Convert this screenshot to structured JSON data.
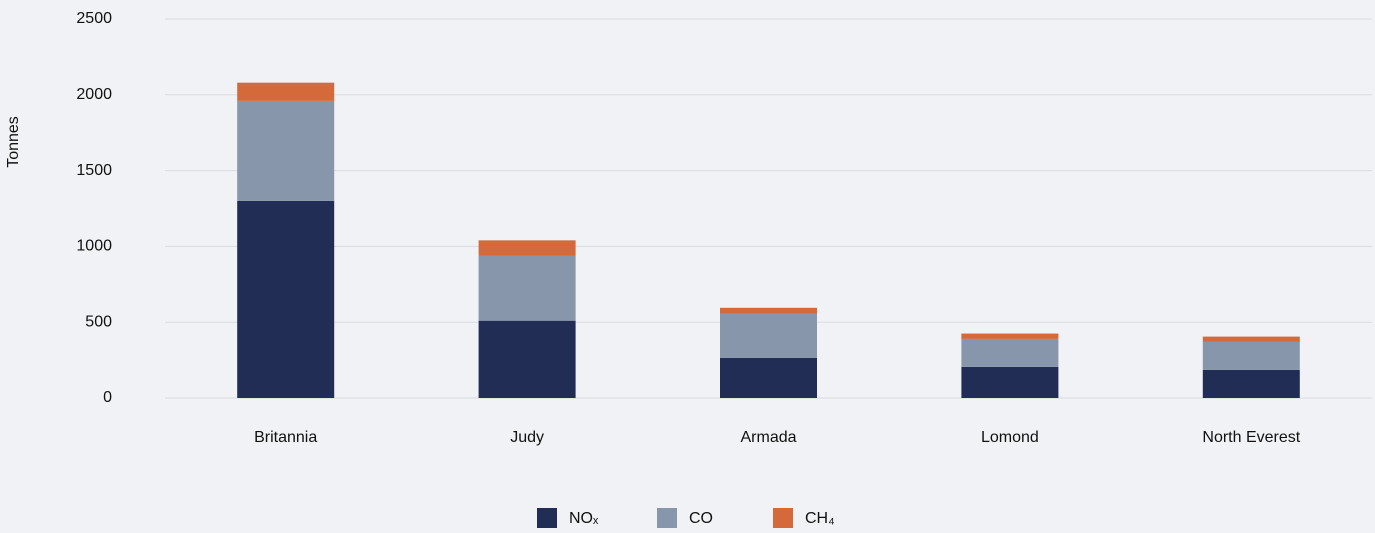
{
  "chart_data": {
    "type": "stacked_bar",
    "y_label": "Tonnes",
    "categories": [
      "Britannia",
      "Judy",
      "Armada",
      "Lomond",
      "North Everest"
    ],
    "series": [
      {
        "name": "NOₓ",
        "color": "#222d55",
        "values": [
          1300,
          510,
          265,
          205,
          185
        ]
      },
      {
        "name": "CO",
        "color": "#8796ab",
        "values": [
          660,
          430,
          290,
          185,
          185
        ]
      },
      {
        "name": "CH₄",
        "color": "#d4693a",
        "values": [
          120,
          100,
          40,
          35,
          35
        ]
      }
    ],
    "ylim": [
      0,
      2500
    ],
    "yticks": [
      0,
      500,
      1000,
      1500,
      2000,
      2500
    ],
    "grid": true,
    "legend": "bottom"
  }
}
